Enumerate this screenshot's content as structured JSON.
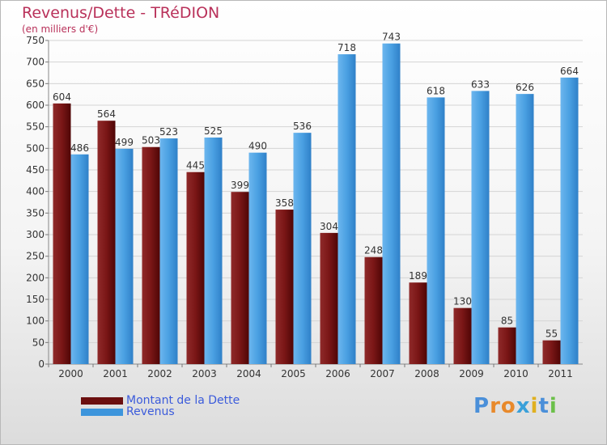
{
  "chart_data": {
    "type": "bar",
    "title": "Revenus/Dette - TRéDION",
    "subtitle": "(en milliers d'€)",
    "categories": [
      "2000",
      "2001",
      "2002",
      "2003",
      "2004",
      "2005",
      "2006",
      "2007",
      "2008",
      "2009",
      "2010",
      "2011"
    ],
    "series": [
      {
        "name": "Montant de la Dette",
        "color": "#6b0f0f",
        "values": [
          604,
          564,
          503,
          445,
          399,
          358,
          304,
          248,
          189,
          130,
          85,
          55
        ]
      },
      {
        "name": "Revenus",
        "color": "#3d95dc",
        "values": [
          486,
          499,
          523,
          525,
          490,
          536,
          718,
          743,
          618,
          633,
          626,
          664
        ]
      }
    ],
    "ylim": [
      0,
      750
    ],
    "yticks": [
      0,
      50,
      100,
      150,
      200,
      250,
      300,
      350,
      400,
      450,
      500,
      550,
      600,
      650,
      700,
      750
    ],
    "grid": true,
    "legend": "bottom-left"
  },
  "logo": {
    "letters": [
      "P",
      "r",
      "o",
      "x",
      "i",
      "t",
      "i"
    ],
    "colors": [
      "#4a8fd9",
      "#e8892b",
      "#e8892b",
      "#3aa0d9",
      "#e0b020",
      "#4a8fd9",
      "#6cc04a"
    ]
  }
}
